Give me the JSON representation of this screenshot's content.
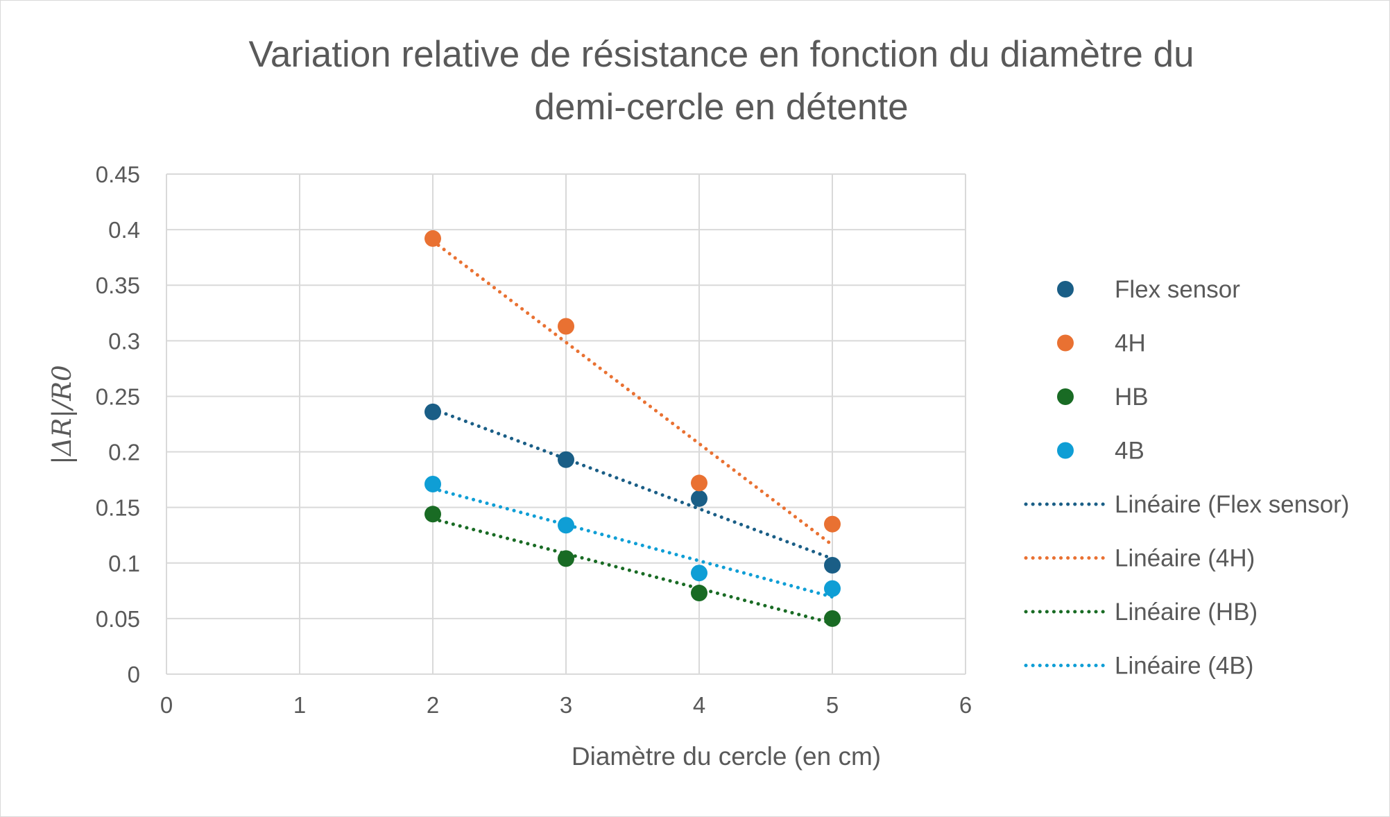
{
  "chart_data": {
    "type": "scatter",
    "title_lines": [
      "Variation relative de résistance en fonction du diamètre du",
      "demi-cercle en détente"
    ],
    "xlabel": "Diamètre du cercle (en cm)",
    "ylabel": "|ΔR|/R0",
    "xlim": [
      0,
      6
    ],
    "ylim": [
      0,
      0.45
    ],
    "x_ticks": [
      "0",
      "1",
      "2",
      "3",
      "4",
      "5",
      "6"
    ],
    "y_ticks": [
      "0",
      "0.05",
      "0.1",
      "0.15",
      "0.2",
      "0.25",
      "0.3",
      "0.35",
      "0.4",
      "0.45"
    ],
    "grid": true,
    "legend_position": "right",
    "x": [
      2,
      3,
      4,
      5
    ],
    "series": [
      {
        "name": "Flex sensor",
        "color": "#1a5e86",
        "values": [
          0.236,
          0.193,
          0.158,
          0.098
        ]
      },
      {
        "name": "4H",
        "color": "#e97132",
        "values": [
          0.392,
          0.313,
          0.172,
          0.135
        ]
      },
      {
        "name": "HB",
        "color": "#196b24",
        "values": [
          0.144,
          0.104,
          0.073,
          0.05
        ]
      },
      {
        "name": "4B",
        "color": "#0f9ed5",
        "values": [
          0.171,
          0.134,
          0.091,
          0.077
        ]
      }
    ],
    "trendlines": [
      {
        "name": "Linéaire (Flex sensor)",
        "color": "#1a5e86",
        "style": "dotted",
        "series": "Flex sensor"
      },
      {
        "name": "Linéaire (4H)",
        "color": "#e97132",
        "style": "dotted",
        "series": "4H"
      },
      {
        "name": "Linéaire (HB)",
        "color": "#196b24",
        "style": "dotted",
        "series": "HB"
      },
      {
        "name": "Linéaire (4B)",
        "color": "#0f9ed5",
        "style": "dotted",
        "series": "4B"
      }
    ],
    "colors": {
      "text": "#595959",
      "grid": "#d9d9d9",
      "frame": "#d9d9d9"
    }
  }
}
